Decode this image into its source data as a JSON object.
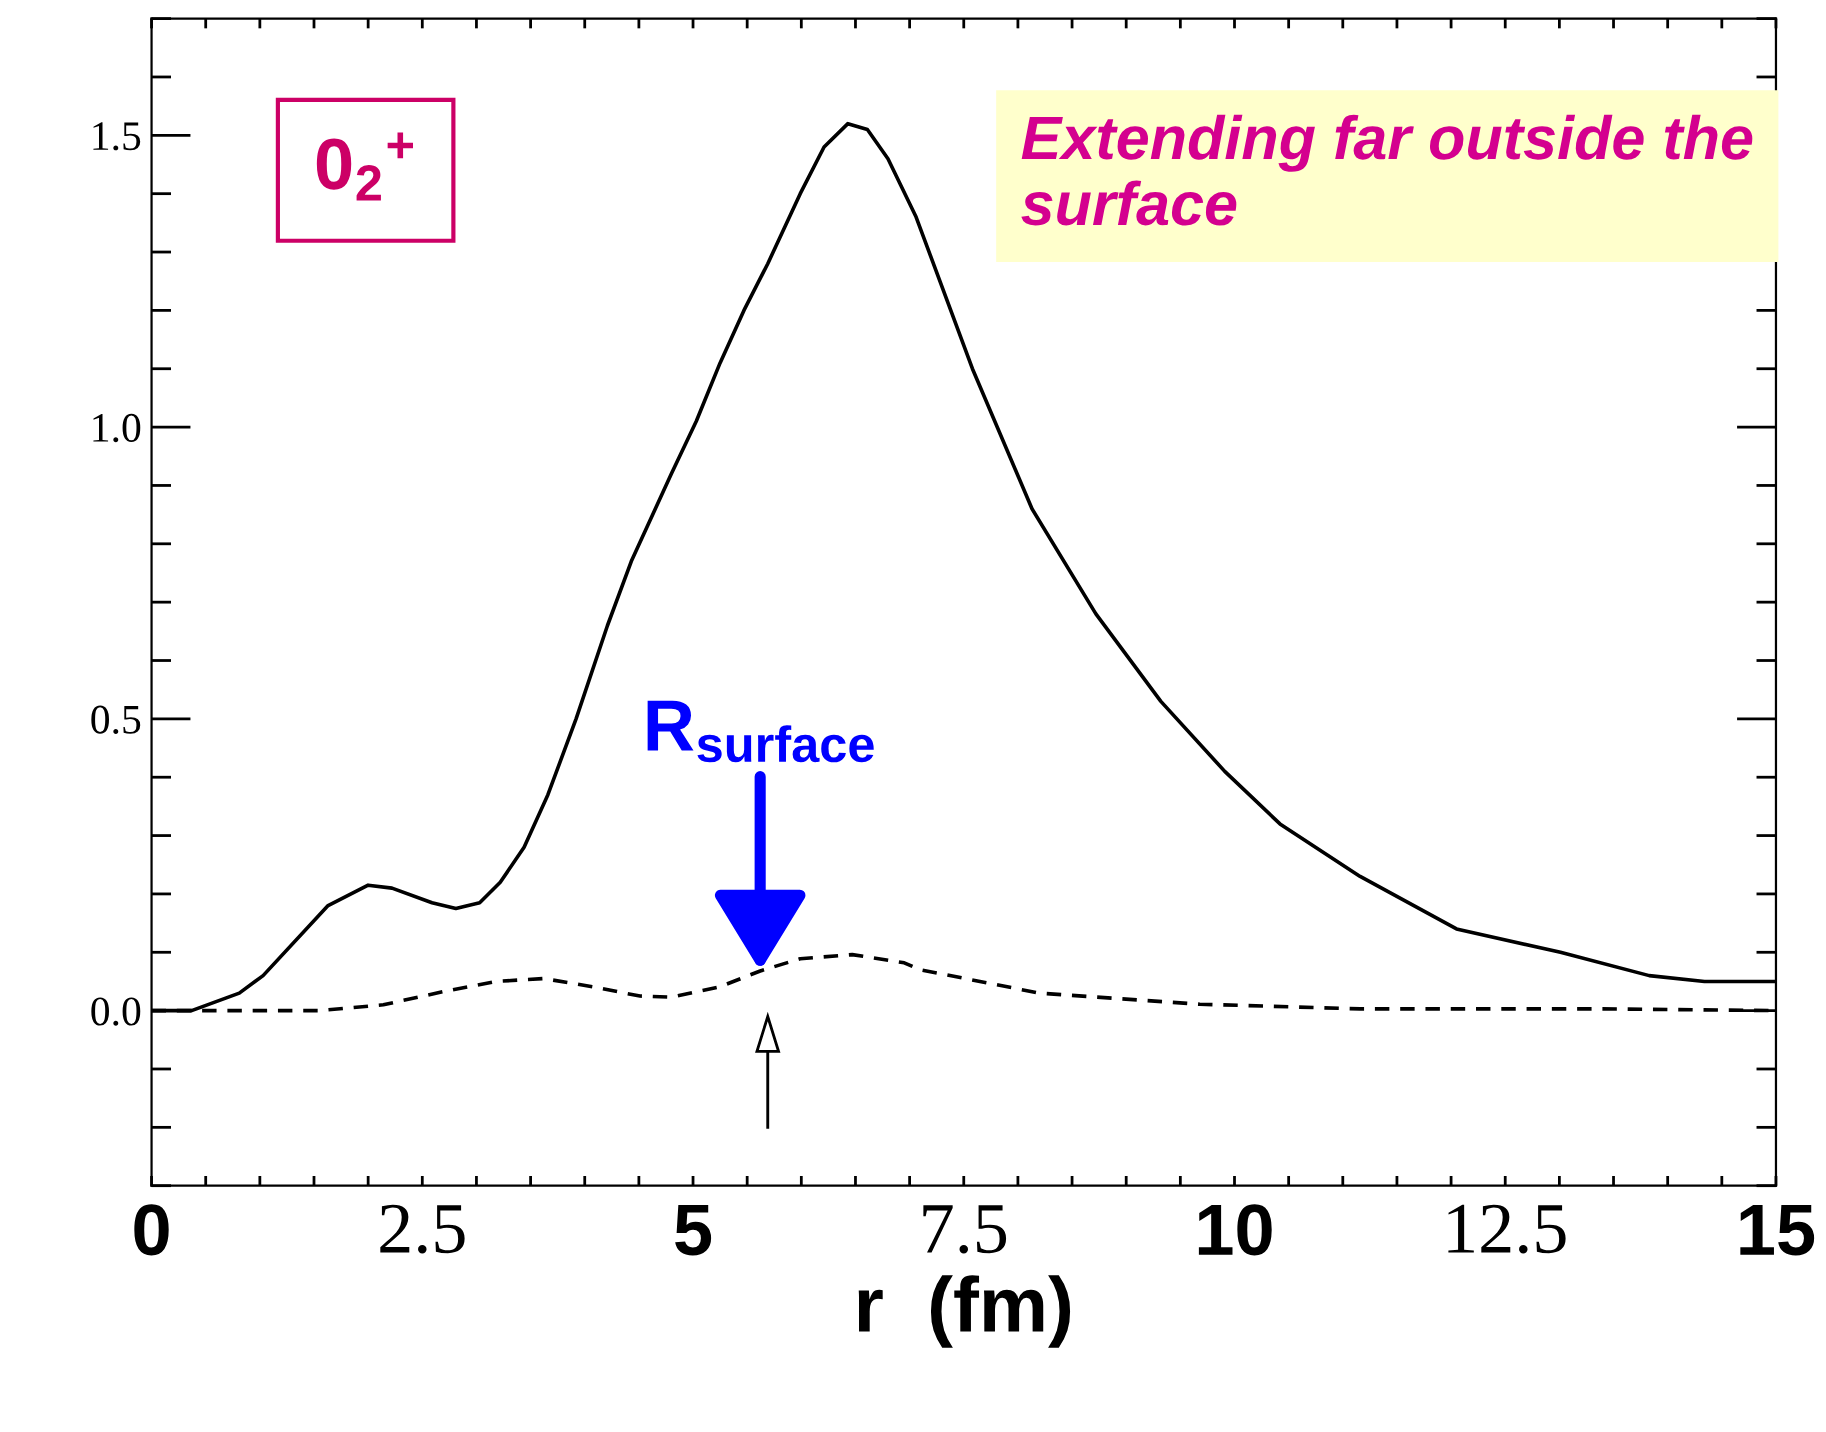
{
  "chart_data": {
    "type": "line",
    "xlabel": "r  (fm)",
    "xlim": [
      0,
      15
    ],
    "ylim": [
      -0.3,
      1.7
    ],
    "xticks": [
      0,
      {
        "value": 0.5,
        "label": null
      },
      {
        "value": 1,
        "label": null
      },
      {
        "value": 1.5,
        "label": null
      },
      {
        "value": 2,
        "label": null
      },
      2.5,
      {
        "value": 3,
        "label": null
      },
      {
        "value": 3.5,
        "label": null
      },
      {
        "value": 4,
        "label": null
      },
      {
        "value": 4.5,
        "label": null
      },
      5,
      {
        "value": 5.5,
        "label": null
      },
      {
        "value": 6,
        "label": null
      },
      {
        "value": 6.5,
        "label": null
      },
      {
        "value": 7,
        "label": null
      },
      7.5,
      {
        "value": 8,
        "label": null
      },
      {
        "value": 8.5,
        "label": null
      },
      {
        "value": 9,
        "label": null
      },
      {
        "value": 9.5,
        "label": null
      },
      10,
      {
        "value": 10.5,
        "label": null
      },
      {
        "value": 11,
        "label": null
      },
      {
        "value": 11.5,
        "label": null
      },
      {
        "value": 12,
        "label": null
      },
      12.5,
      {
        "value": 13,
        "label": null
      },
      {
        "value": 13.5,
        "label": null
      },
      {
        "value": 14,
        "label": null
      },
      {
        "value": 14.5,
        "label": null
      },
      15
    ],
    "yticks": [
      {
        "value": -0.3,
        "label": null
      },
      {
        "value": -0.2,
        "label": null
      },
      {
        "value": -0.1,
        "label": null
      },
      {
        "value": 0,
        "label": "0.0"
      },
      {
        "value": 0.1,
        "label": null
      },
      {
        "value": 0.2,
        "label": null
      },
      {
        "value": 0.3,
        "label": null
      },
      {
        "value": 0.4,
        "label": null
      },
      0.5,
      {
        "value": 0.6,
        "label": null
      },
      {
        "value": 0.7,
        "label": null
      },
      {
        "value": 0.8,
        "label": null
      },
      {
        "value": 0.9,
        "label": null
      },
      {
        "value": 1.0,
        "label": "1.0"
      },
      {
        "value": 1.1,
        "label": null
      },
      {
        "value": 1.2,
        "label": null
      },
      {
        "value": 1.3,
        "label": null
      },
      {
        "value": 1.4,
        "label": null
      },
      1.5,
      {
        "value": 1.6,
        "label": null
      },
      {
        "value": 1.7,
        "label": null
      }
    ],
    "grid": false,
    "legend": false,
    "series": [
      {
        "color": "#000000",
        "line_style": "solid",
        "x": [
          0,
          0.37,
          0.81,
          1.03,
          1.63,
          2.0,
          2.22,
          2.59,
          2.81,
          3.03,
          3.22,
          3.44,
          3.66,
          3.92,
          4.21,
          4.43,
          4.8,
          5.03,
          5.25,
          5.47,
          5.69,
          5.99,
          6.21,
          6.43,
          6.61,
          6.8,
          7.06,
          7.58,
          8.13,
          8.72,
          9.32,
          9.91,
          10.42,
          11.16,
          12.05,
          13.01,
          13.83,
          14.34,
          15
        ],
        "values": [
          0,
          0.0,
          0.03,
          0.06,
          0.18,
          0.215,
          0.21,
          0.185,
          0.175,
          0.185,
          0.22,
          0.28,
          0.37,
          0.5,
          0.66,
          0.77,
          0.92,
          1.01,
          1.11,
          1.2,
          1.28,
          1.4,
          1.48,
          1.52,
          1.51,
          1.46,
          1.36,
          1.1,
          0.86,
          0.68,
          0.53,
          0.41,
          0.32,
          0.23,
          0.14,
          0.1,
          0.06,
          0.05,
          0.05
        ]
      },
      {
        "color": "#000000",
        "line_style": "dashed",
        "x": [
          0,
          1.55,
          2.14,
          2.73,
          3.18,
          3.62,
          4.07,
          4.51,
          4.8,
          5.25,
          5.62,
          5.99,
          6.47,
          6.95,
          7.1,
          8.2,
          9.68,
          11.16,
          13.38,
          15
        ],
        "values": [
          0,
          0,
          0.01,
          0.034,
          0.05,
          0.055,
          0.041,
          0.025,
          0.023,
          0.041,
          0.068,
          0.089,
          0.096,
          0.082,
          0.07,
          0.03,
          0.011,
          0.003,
          0.003,
          0
        ]
      }
    ],
    "annotations": [
      {
        "text": "R$_{surface}$",
        "x": 5.62,
        "y": 0.068
      },
      "0$_{2}$$^{+}$",
      "Extending far outside the surface"
    ]
  }
}
